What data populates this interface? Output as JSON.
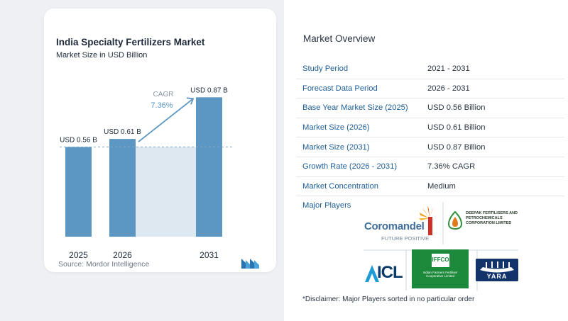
{
  "chart_data": {
    "type": "bar",
    "title": "India Specialty Fertilizers Market",
    "subtitle": "Market Size in USD Billion",
    "categories": [
      "2025",
      "2026",
      "2031"
    ],
    "values": [
      0.56,
      0.61,
      0.87
    ],
    "data_labels": [
      "USD 0.56 B",
      "USD 0.61 B",
      "USD 0.87 B"
    ],
    "cagr_label": "CAGR",
    "cagr_value": "7.36%",
    "ylim": [
      0,
      0.92
    ],
    "colors": {
      "bar": "#5b97c2",
      "band": "#dde8f1",
      "accent": "#5b97c2"
    },
    "source": "Source: Mordor Intelligence"
  },
  "overview": {
    "title": "Market Overview",
    "rows": [
      {
        "label": "Study Period",
        "value": "2021 - 2031"
      },
      {
        "label": "Forecast Data Period",
        "value": "2026 - 2031"
      },
      {
        "label": "Base Year Market Size (2025)",
        "value": "USD 0.56 Billion"
      },
      {
        "label": "Market Size (2026)",
        "value": "USD 0.61 Billion"
      },
      {
        "label": "Market Size (2031)",
        "value": "USD 0.87 Billion"
      },
      {
        "label": "Growth Rate (2026 - 2031)",
        "value": "7.36% CAGR"
      },
      {
        "label": "Market Concentration",
        "value": "Medium"
      }
    ],
    "players_label": "Major Players",
    "players": [
      {
        "name": "Coromandel",
        "tagline": "FUTURE POSITIVE",
        "icon": "coromandel-logo"
      },
      {
        "name": "DEEPAK FERTILISERS AND PETROCHEMICALS CORPORATION LIMITED",
        "icon": "deepak-logo"
      },
      {
        "name": "ICL",
        "icon": "icl-logo"
      },
      {
        "name": "IFFCO",
        "subtitle": "Indian Farmers Fertiliser Cooperative Limited",
        "icon": "iffco-logo"
      },
      {
        "name": "YARA",
        "icon": "yara-logo"
      }
    ],
    "disclaimer": "*Disclaimer: Major Players sorted in no particular order"
  }
}
